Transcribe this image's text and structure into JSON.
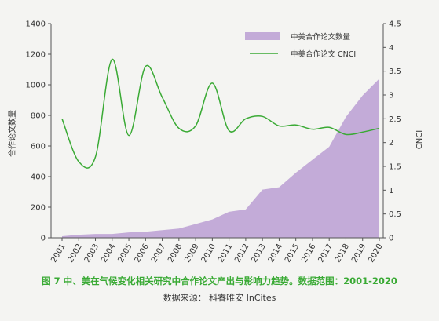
{
  "caption": "图 7  中、美在气候变化相关研究中合作论文产出与影响力趋势。数据范围：2001-2020",
  "source": "数据来源：  科睿唯安 InCites",
  "colors": {
    "area": "#c3abd8",
    "line": "#3aaa35",
    "axis": "#555555"
  },
  "chart_data": {
    "type": "area",
    "title": "",
    "x": [
      "2001",
      "2002",
      "2003",
      "2004",
      "2005",
      "2006",
      "2007",
      "2008",
      "2009",
      "2010",
      "2011",
      "2012",
      "2013",
      "2014",
      "2015",
      "2016",
      "2017",
      "2018",
      "2019",
      "2020"
    ],
    "ylabel_left": "合作论文数量",
    "ylabel_right": "CNCI",
    "ylim_left": [
      0,
      1400
    ],
    "ylim_right": [
      0,
      4.5
    ],
    "yticks_left": [
      0,
      200,
      400,
      600,
      800,
      1000,
      1200,
      1400
    ],
    "yticks_right": [
      "0",
      "0.5",
      "1",
      "1.5",
      "2",
      "2.5",
      "3",
      "3.5",
      "4",
      "4.5"
    ],
    "legend_position": "top-right",
    "series": [
      {
        "name": "中美合作论文数量",
        "kind": "area",
        "axis": "left",
        "values": [
          10,
          20,
          25,
          25,
          35,
          40,
          50,
          60,
          90,
          120,
          170,
          185,
          315,
          330,
          425,
          510,
          595,
          790,
          930,
          1040
        ]
      },
      {
        "name": "中美合作论文 CNCI",
        "kind": "line",
        "axis": "right",
        "values": [
          2.5,
          1.6,
          1.7,
          3.75,
          2.15,
          3.6,
          2.95,
          2.3,
          2.35,
          3.25,
          2.25,
          2.5,
          2.55,
          2.35,
          2.37,
          2.28,
          2.32,
          2.17,
          2.22,
          2.3
        ]
      }
    ]
  }
}
